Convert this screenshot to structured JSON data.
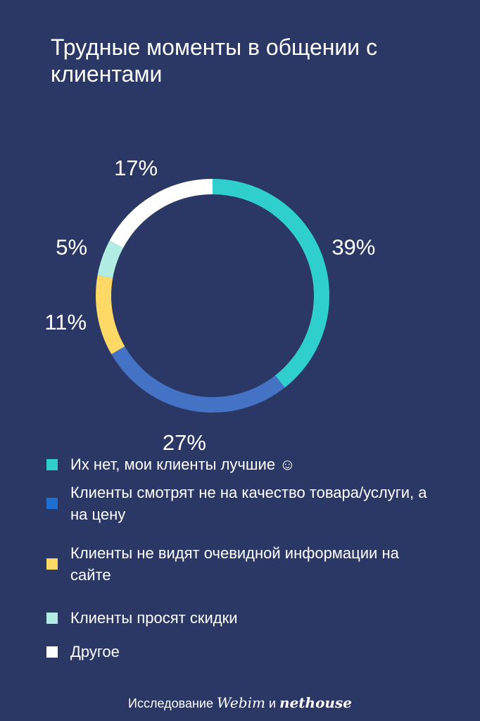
{
  "chart_data": {
    "type": "pie",
    "title": "Трудные моменты в общении с клиентами",
    "categories": [
      "Их нет, мои клиенты лучшие ☺",
      "Клиенты смотрят не на качество товара/услуги, а на цену",
      "Клиенты не видят очевидной информации на сайте",
      "Клиенты просят скидки",
      "Другое"
    ],
    "values": [
      39,
      27,
      11,
      5,
      17
    ],
    "value_labels": [
      "39%",
      "27%",
      "11%",
      "5%",
      "17%"
    ],
    "colors": [
      "#2ecfcc",
      "#4472c4",
      "#ffd965",
      "#b2ede3",
      "#ffffff"
    ],
    "legend_colors": [
      "#2ecfcc",
      "#1f6fd1",
      "#ffd965",
      "#b2ede3",
      "#ffffff"
    ],
    "legend_position": "bottom",
    "donut": true
  },
  "footer": {
    "prefix": "Исследование",
    "brand1": "Webim",
    "conj": "и",
    "brand2": "nethouse"
  }
}
